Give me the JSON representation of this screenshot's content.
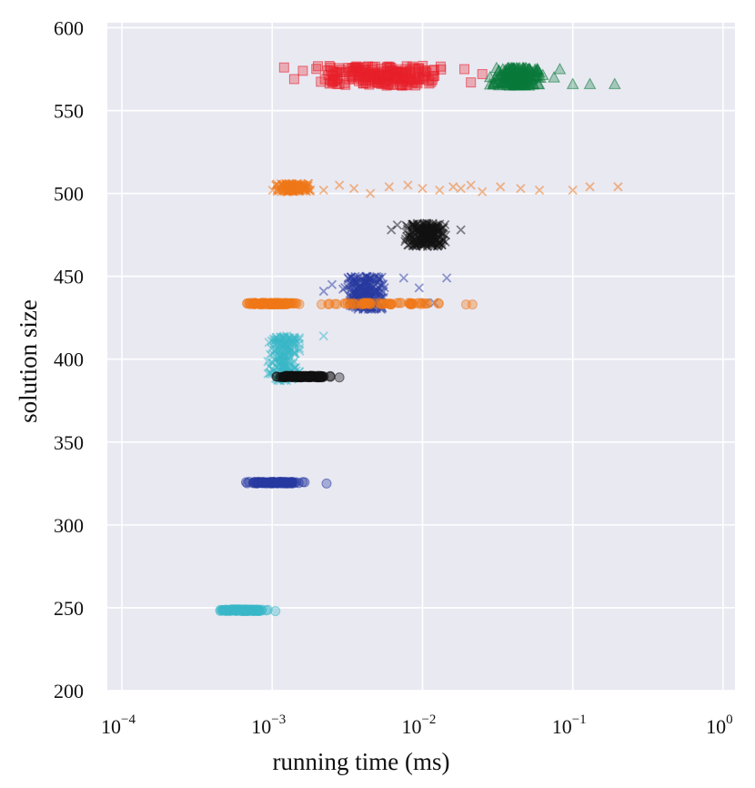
{
  "chart_data": {
    "type": "scatter",
    "title": "",
    "xlabel": "running time (ms)",
    "ylabel": "solution size",
    "xscale": "log",
    "xlim": [
      8e-05,
      1.2
    ],
    "ylim": [
      200,
      603
    ],
    "grid": true,
    "x_ticks": [
      {
        "value": 0.0001,
        "base": "10",
        "exp": "−4"
      },
      {
        "value": 0.001,
        "base": "10",
        "exp": "−3"
      },
      {
        "value": 0.01,
        "base": "10",
        "exp": "−2"
      },
      {
        "value": 0.1,
        "base": "10",
        "exp": "−1"
      },
      {
        "value": 1,
        "base": "10",
        "exp": "0"
      }
    ],
    "y_ticks": [
      200,
      250,
      300,
      350,
      400,
      450,
      500,
      550,
      600
    ],
    "series": [
      {
        "name": "red squares",
        "marker": "square",
        "color": "#e8202a",
        "clusters": [
          {
            "xmin": 0.0018,
            "xmax": 0.015,
            "ymin": 565,
            "ymax": 577,
            "n": 200
          }
        ],
        "outliers": [
          [
            0.0014,
            569
          ],
          [
            0.0016,
            574
          ],
          [
            0.0012,
            576
          ],
          [
            0.019,
            575
          ],
          [
            0.021,
            567
          ],
          [
            0.025,
            572
          ]
        ]
      },
      {
        "name": "green triangles",
        "marker": "triangle",
        "color": "#0a7a3a",
        "clusters": [
          {
            "xmin": 0.028,
            "xmax": 0.065,
            "ymin": 565,
            "ymax": 576,
            "n": 200
          }
        ],
        "outliers": [
          [
            0.1,
            566
          ],
          [
            0.13,
            566
          ],
          [
            0.19,
            566
          ],
          [
            0.075,
            570
          ],
          [
            0.082,
            575
          ]
        ]
      },
      {
        "name": "orange crosses",
        "marker": "x",
        "color": "#f07818",
        "clusters": [
          {
            "xmin": 0.001,
            "xmax": 0.0019,
            "ymin": 501,
            "ymax": 506,
            "n": 140
          }
        ],
        "outliers": [
          [
            0.0022,
            502
          ],
          [
            0.0028,
            505
          ],
          [
            0.0035,
            503
          ],
          [
            0.0045,
            500
          ],
          [
            0.006,
            504
          ],
          [
            0.008,
            505
          ],
          [
            0.01,
            503
          ],
          [
            0.013,
            502
          ],
          [
            0.016,
            504
          ],
          [
            0.018,
            503
          ],
          [
            0.021,
            505
          ],
          [
            0.025,
            501
          ],
          [
            0.033,
            504
          ],
          [
            0.045,
            503
          ],
          [
            0.06,
            502
          ],
          [
            0.1,
            502
          ],
          [
            0.13,
            504
          ],
          [
            0.2,
            504
          ]
        ]
      },
      {
        "name": "black crosses",
        "marker": "x",
        "color": "#111111",
        "clusters": [
          {
            "xmin": 0.0075,
            "xmax": 0.0148,
            "ymin": 468,
            "ymax": 482,
            "n": 220
          }
        ],
        "outliers": [
          [
            0.0062,
            478
          ],
          [
            0.0068,
            481
          ],
          [
            0.018,
            478
          ]
        ]
      },
      {
        "name": "navy crosses",
        "marker": "x",
        "color": "#283aa0",
        "clusters": [
          {
            "xmin": 0.0028,
            "xmax": 0.0058,
            "ymin": 430,
            "ymax": 450,
            "n": 230
          }
        ],
        "outliers": [
          [
            0.0022,
            441
          ],
          [
            0.0025,
            445
          ],
          [
            0.0075,
            449
          ],
          [
            0.0095,
            443
          ],
          [
            0.012,
            434
          ],
          [
            0.0145,
            449
          ],
          [
            0.0105,
            434
          ]
        ]
      },
      {
        "name": "orange circles",
        "marker": "circle",
        "color": "#f07818",
        "clusters": [
          {
            "xmin": 0.00062,
            "xmax": 0.0016,
            "ymin": 433,
            "ymax": 434,
            "n": 120
          },
          {
            "xmin": 0.0018,
            "xmax": 0.016,
            "ymin": 433,
            "ymax": 434,
            "n": 60
          }
        ],
        "outliers": [
          [
            0.0195,
            433
          ],
          [
            0.0215,
            433
          ]
        ]
      },
      {
        "name": "cyan crosses",
        "marker": "x",
        "color": "#3ab8c8",
        "clusters": [
          {
            "xmin": 0.00092,
            "xmax": 0.0016,
            "ymin": 387,
            "ymax": 414,
            "n": 200
          }
        ],
        "outliers": [
          [
            0.0022,
            414
          ]
        ]
      },
      {
        "name": "black circles",
        "marker": "circle",
        "color": "#111111",
        "clusters": [
          {
            "xmin": 0.00105,
            "xmax": 0.0025,
            "ymin": 389,
            "ymax": 390,
            "n": 130
          }
        ],
        "outliers": [
          [
            0.0028,
            389
          ]
        ]
      },
      {
        "name": "navy circles",
        "marker": "circle",
        "color": "#283aa0",
        "clusters": [
          {
            "xmin": 0.00065,
            "xmax": 0.0017,
            "ymin": 325,
            "ymax": 326,
            "n": 120
          }
        ],
        "outliers": [
          [
            0.0023,
            325
          ]
        ]
      },
      {
        "name": "cyan circles",
        "marker": "circle",
        "color": "#3ab8c8",
        "clusters": [
          {
            "xmin": 0.00042,
            "xmax": 0.00098,
            "ymin": 248,
            "ymax": 249,
            "n": 110
          }
        ],
        "outliers": [
          [
            0.00105,
            248
          ]
        ]
      }
    ],
    "colors": {
      "panel": "#e9e9f2",
      "grid": "#ffffff"
    }
  }
}
